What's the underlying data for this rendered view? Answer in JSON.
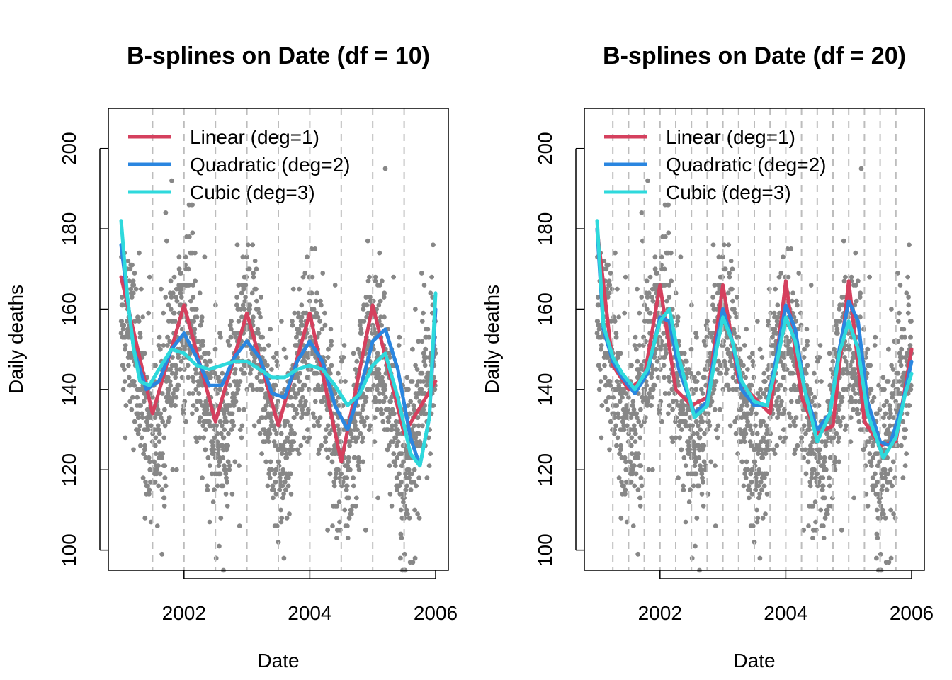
{
  "chart_data": [
    {
      "type": "line",
      "title": "B-splines on Date (df = 10)",
      "xlabel": "Date",
      "ylabel": "Daily deaths",
      "xlim": [
        2001.0,
        2006.0
      ],
      "ylim": [
        95,
        210
      ],
      "xticks": [
        2002,
        2004,
        2006
      ],
      "xtick_labels": [
        "2002",
        "2004",
        "2006"
      ],
      "yticks": [
        100,
        120,
        140,
        160,
        180,
        200
      ],
      "ytick_labels": [
        "100",
        "120",
        "140",
        "160",
        "180",
        "200"
      ],
      "knots": [
        2001.5,
        2002.0,
        2002.5,
        2003.0,
        2003.5,
        2004.0,
        2004.5,
        2005.0,
        2005.5
      ],
      "legend": {
        "position": "top-left",
        "entries": [
          "Linear (deg=1)",
          "Quadratic (deg=2)",
          "Cubic (deg=3)"
        ]
      },
      "points_color": "#878787",
      "series": [
        {
          "name": "Linear (deg=1)",
          "color": "#D5405E",
          "x": [
            2001.0,
            2001.5,
            2002.0,
            2002.5,
            2003.0,
            2003.5,
            2004.0,
            2004.5,
            2005.0,
            2005.5,
            2006.0
          ],
          "values": [
            168,
            134,
            161,
            132,
            159,
            131,
            159,
            122,
            161,
            129,
            142
          ]
        },
        {
          "name": "Quadratic (deg=2)",
          "color": "#2A86E0",
          "x": [
            2001.0,
            2001.2,
            2001.4,
            2001.6,
            2001.8,
            2002.0,
            2002.2,
            2002.4,
            2002.6,
            2002.8,
            2003.0,
            2003.2,
            2003.4,
            2003.6,
            2003.8,
            2004.0,
            2004.2,
            2004.4,
            2004.6,
            2004.8,
            2005.0,
            2005.2,
            2005.4,
            2005.6,
            2005.75,
            2005.9,
            2006.0
          ],
          "values": [
            176,
            150,
            140,
            142,
            150,
            154,
            148,
            141,
            141,
            148,
            152,
            148,
            139,
            138,
            147,
            152,
            147,
            136,
            130,
            140,
            152,
            155,
            145,
            128,
            121,
            133,
            160
          ]
        },
        {
          "name": "Cubic (deg=3)",
          "color": "#2ED9DC",
          "x": [
            2001.0,
            2001.1,
            2001.2,
            2001.3,
            2001.45,
            2001.6,
            2001.8,
            2002.0,
            2002.2,
            2002.4,
            2002.6,
            2002.8,
            2003.0,
            2003.2,
            2003.4,
            2003.6,
            2003.8,
            2004.0,
            2004.2,
            2004.4,
            2004.6,
            2004.8,
            2005.0,
            2005.2,
            2005.4,
            2005.6,
            2005.75,
            2005.9,
            2006.0
          ],
          "values": [
            182,
            163,
            150,
            142,
            141,
            145,
            150,
            149,
            146,
            145,
            146,
            147,
            147,
            145,
            143,
            143,
            145,
            146,
            145,
            141,
            136,
            139,
            146,
            149,
            138,
            124,
            121,
            133,
            164
          ]
        }
      ]
    },
    {
      "type": "line",
      "title": "B-splines on Date (df = 20)",
      "xlabel": "Date",
      "ylabel": "Daily deaths",
      "xlim": [
        2001.0,
        2006.0
      ],
      "ylim": [
        95,
        210
      ],
      "xticks": [
        2002,
        2004,
        2006
      ],
      "xtick_labels": [
        "2002",
        "2004",
        "2006"
      ],
      "yticks": [
        100,
        120,
        140,
        160,
        180,
        200
      ],
      "ytick_labels": [
        "100",
        "120",
        "140",
        "160",
        "180",
        "200"
      ],
      "knots": [
        2001.25,
        2001.5,
        2001.75,
        2002.0,
        2002.25,
        2002.5,
        2002.75,
        2003.0,
        2003.25,
        2003.5,
        2003.75,
        2004.0,
        2004.25,
        2004.5,
        2004.75,
        2005.0,
        2005.25,
        2005.5,
        2005.75
      ],
      "legend": {
        "position": "top-left",
        "entries": [
          "Linear (deg=1)",
          "Quadratic (deg=2)",
          "Cubic (deg=3)"
        ]
      },
      "points_color": "#878787",
      "series": [
        {
          "name": "Linear (deg=1)",
          "color": "#D5405E",
          "x": [
            2001.0,
            2001.25,
            2001.5,
            2001.75,
            2002.0,
            2002.25,
            2002.5,
            2002.75,
            2003.0,
            2003.25,
            2003.5,
            2003.75,
            2004.0,
            2004.25,
            2004.5,
            2004.75,
            2005.0,
            2005.25,
            2005.5,
            2005.75,
            2006.0
          ],
          "values": [
            180,
            146,
            140,
            143,
            166,
            140,
            136,
            138,
            166,
            142,
            138,
            134,
            167,
            138,
            129,
            131,
            167,
            132,
            126,
            127,
            150
          ]
        },
        {
          "name": "Quadratic (deg=2)",
          "color": "#2A86E0",
          "x": [
            2001.0,
            2001.1,
            2001.25,
            2001.4,
            2001.6,
            2001.8,
            2002.0,
            2002.15,
            2002.3,
            2002.55,
            2002.75,
            2002.9,
            2003.0,
            2003.15,
            2003.3,
            2003.5,
            2003.7,
            2003.85,
            2004.0,
            2004.15,
            2004.3,
            2004.5,
            2004.7,
            2004.85,
            2005.0,
            2005.15,
            2005.3,
            2005.5,
            2005.65,
            2005.85,
            2006.0
          ],
          "values": [
            180,
            155,
            147,
            143,
            139,
            144,
            158,
            157,
            145,
            134,
            137,
            152,
            160,
            152,
            140,
            136,
            136,
            148,
            161,
            155,
            140,
            130,
            134,
            150,
            162,
            157,
            137,
            127,
            126,
            136,
            147
          ]
        },
        {
          "name": "Cubic (deg=3)",
          "color": "#2ED9DC",
          "x": [
            2001.0,
            2001.1,
            2001.25,
            2001.4,
            2001.6,
            2001.8,
            2002.0,
            2002.15,
            2002.3,
            2002.55,
            2002.75,
            2002.9,
            2003.0,
            2003.15,
            2003.3,
            2003.5,
            2003.7,
            2003.85,
            2004.0,
            2004.15,
            2004.3,
            2004.5,
            2004.7,
            2004.85,
            2005.0,
            2005.15,
            2005.3,
            2005.55,
            2005.75,
            2005.9,
            2006.0
          ],
          "values": [
            182,
            156,
            148,
            144,
            140,
            145,
            157,
            160,
            148,
            133,
            136,
            150,
            158,
            152,
            142,
            137,
            136,
            146,
            158,
            152,
            140,
            127,
            134,
            149,
            157,
            150,
            134,
            123,
            128,
            139,
            144
          ]
        }
      ]
    }
  ]
}
